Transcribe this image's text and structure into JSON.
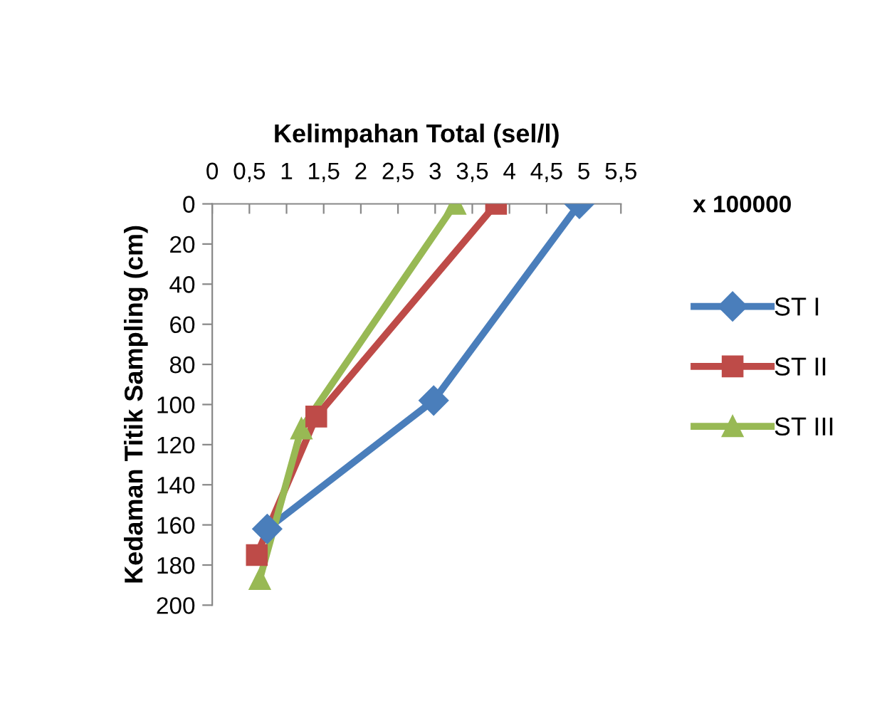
{
  "chart_data": {
    "type": "line",
    "xlabel": "Kelimpahan Total (sel/l)",
    "ylabel": "Kedaman Titik Sampling (cm)",
    "annotations": [
      "x 100000"
    ],
    "xlim": [
      0,
      5.5
    ],
    "xticks": [
      0,
      {
        "value": 0.5,
        "label": "0,5"
      },
      1,
      {
        "value": 1.5,
        "label": "1,5"
      },
      2,
      {
        "value": 2.5,
        "label": "2,5"
      },
      3,
      {
        "value": 3.5,
        "label": "3,5"
      },
      4,
      {
        "value": 4.5,
        "label": "4,5"
      },
      5,
      {
        "value": 5.5,
        "label": "5,5"
      }
    ],
    "ylim": [
      200,
      0
    ],
    "yticks": [
      0,
      20,
      40,
      60,
      80,
      100,
      120,
      140,
      160,
      180,
      200
    ],
    "grid": false,
    "legend": "right",
    "series": [
      {
        "name": "ST I",
        "color": "#4a7ebb",
        "marker": "diamond",
        "x": [
          4.94,
          2.98,
          0.74
        ],
        "values": [
          0,
          98,
          162
        ]
      },
      {
        "name": "ST II",
        "color": "#be4b48",
        "marker": "square",
        "x": [
          3.82,
          1.4,
          0.6
        ],
        "values": [
          0,
          106,
          175
        ]
      },
      {
        "name": "ST III",
        "color": "#98b954",
        "marker": "triangle",
        "x": [
          3.27,
          1.2,
          0.64
        ],
        "values": [
          0,
          112,
          187
        ]
      }
    ]
  }
}
